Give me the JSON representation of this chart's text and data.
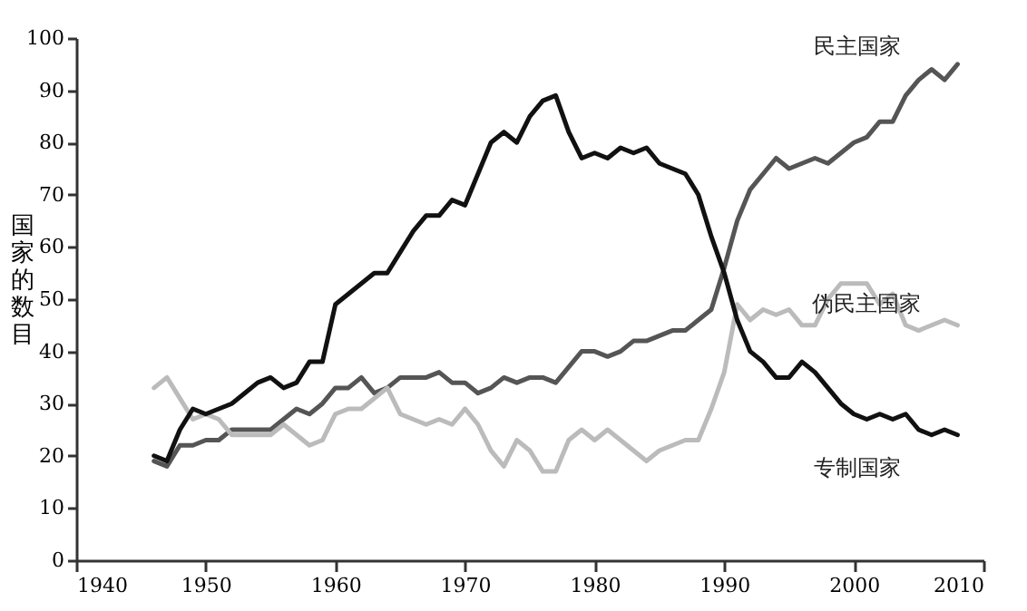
{
  "chart_data": {
    "type": "line",
    "ylabel": "国家的数目",
    "x": [
      1946,
      1947,
      1948,
      1949,
      1950,
      1951,
      1952,
      1953,
      1954,
      1955,
      1956,
      1957,
      1958,
      1959,
      1960,
      1961,
      1962,
      1963,
      1964,
      1965,
      1966,
      1967,
      1968,
      1969,
      1970,
      1971,
      1972,
      1973,
      1974,
      1975,
      1976,
      1977,
      1978,
      1979,
      1980,
      1981,
      1982,
      1983,
      1984,
      1985,
      1986,
      1987,
      1988,
      1989,
      1990,
      1991,
      1992,
      1993,
      1994,
      1995,
      1996,
      1997,
      1998,
      1999,
      2000,
      2001,
      2002,
      2003,
      2004,
      2005,
      2006,
      2007,
      2008
    ],
    "series": [
      {
        "name": "民主国家",
        "color": "#555555",
        "values": [
          19,
          18,
          22,
          22,
          23,
          23,
          25,
          25,
          25,
          25,
          27,
          29,
          28,
          30,
          33,
          33,
          35,
          32,
          33,
          35,
          35,
          35,
          36,
          34,
          34,
          32,
          33,
          35,
          34,
          35,
          35,
          34,
          37,
          40,
          40,
          39,
          40,
          42,
          42,
          43,
          44,
          44,
          46,
          48,
          56,
          65,
          71,
          74,
          77,
          75,
          76,
          77,
          76,
          78,
          80,
          81,
          84,
          84,
          89,
          92,
          94,
          92,
          95
        ]
      },
      {
        "name": "伪民主国家",
        "color": "#bbbbbb",
        "values": [
          33,
          35,
          31,
          27,
          28,
          27,
          24,
          24,
          24,
          24,
          26,
          24,
          22,
          23,
          28,
          29,
          29,
          31,
          33,
          28,
          27,
          26,
          27,
          26,
          29,
          26,
          21,
          18,
          23,
          21,
          17,
          17,
          23,
          25,
          23,
          25,
          23,
          21,
          19,
          21,
          22,
          23,
          23,
          29,
          36,
          49,
          46,
          48,
          47,
          48,
          45,
          45,
          50,
          53,
          53,
          53,
          49,
          51,
          45,
          44,
          45,
          46,
          45
        ]
      },
      {
        "name": "专制国家",
        "color": "#111111",
        "values": [
          20,
          19,
          25,
          29,
          28,
          29,
          30,
          32,
          34,
          35,
          33,
          34,
          38,
          38,
          49,
          51,
          53,
          55,
          55,
          59,
          63,
          66,
          66,
          69,
          68,
          74,
          80,
          82,
          80,
          85,
          88,
          89,
          82,
          77,
          78,
          77,
          79,
          78,
          79,
          76,
          75,
          74,
          70,
          62,
          55,
          46,
          40,
          38,
          35,
          35,
          38,
          36,
          33,
          30,
          28,
          27,
          28,
          27,
          28,
          25,
          24,
          25,
          24
        ]
      }
    ],
    "xlim": [
      1940,
      2010
    ],
    "xticks": [
      1940,
      1950,
      1960,
      1970,
      1980,
      1990,
      2000,
      2010
    ],
    "ylim": [
      0,
      100
    ],
    "yticks": [
      0,
      10,
      20,
      30,
      40,
      50,
      60,
      70,
      80,
      90,
      100
    ],
    "grid": false,
    "line_style": "solid",
    "marker": "none"
  }
}
